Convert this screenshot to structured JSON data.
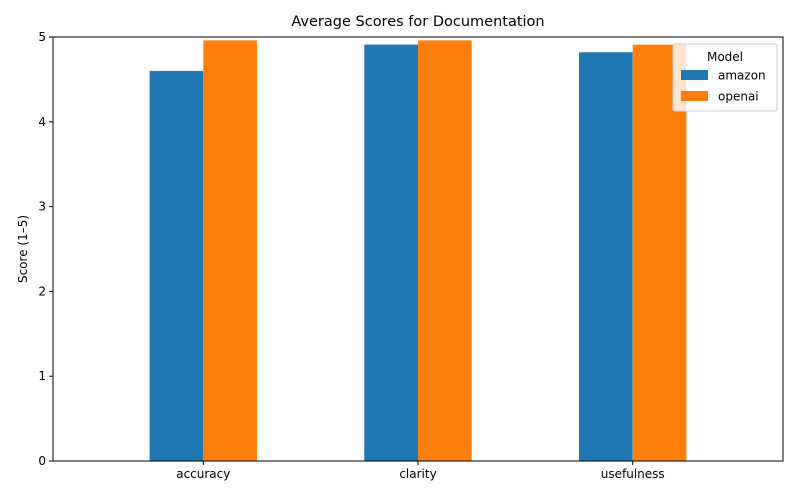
{
  "chart_data": {
    "type": "bar",
    "title": "Average Scores for Documentation",
    "xlabel": "",
    "ylabel": "Score (1–5)",
    "categories": [
      "accuracy",
      "clarity",
      "usefulness"
    ],
    "series": [
      {
        "name": "amazon",
        "values": [
          4.6,
          4.91,
          4.82
        ],
        "color": "#1f77b4"
      },
      {
        "name": "openai",
        "values": [
          4.96,
          4.96,
          4.91
        ],
        "color": "#ff7f0e"
      }
    ],
    "ylim": [
      0,
      5
    ],
    "yticks": [
      0,
      1,
      2,
      3,
      4,
      5
    ],
    "grid": false,
    "legend": {
      "title": "Model",
      "placement": "top-right"
    }
  }
}
